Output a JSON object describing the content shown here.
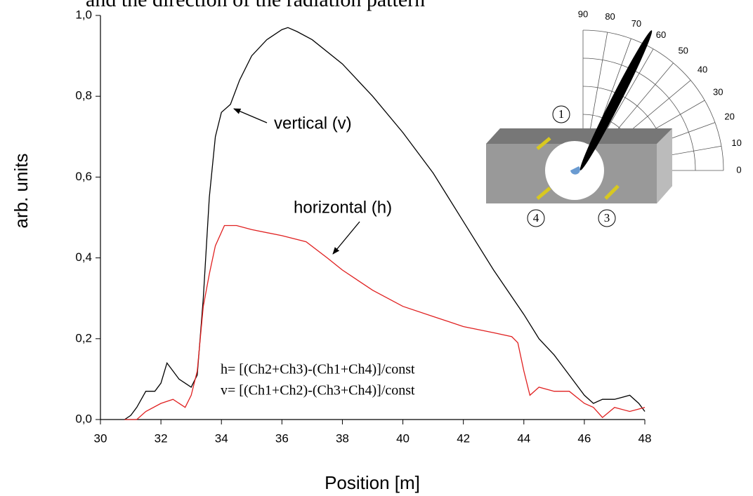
{
  "chart_data": {
    "type": "line",
    "title": "and the direction of the radiation pattern",
    "x_label": "Position [m]",
    "y_label": "arb. units",
    "xlim": [
      30,
      48
    ],
    "xticks": [
      30,
      32,
      34,
      36,
      38,
      40,
      42,
      44,
      46,
      48
    ],
    "ylim": [
      0,
      1
    ],
    "yticks": [
      {
        "value": 0,
        "label": "0,0"
      },
      {
        "value": 0.2,
        "label": "0,2"
      },
      {
        "value": 0.4,
        "label": "0,4"
      },
      {
        "value": 0.6,
        "label": "0,6"
      },
      {
        "value": 0.8,
        "label": "0,8"
      },
      {
        "value": 1,
        "label": "1,0"
      }
    ],
    "grid": false,
    "series": [
      {
        "name": "vertical (v)",
        "color": "#000000",
        "x": [
          30.8,
          31.0,
          31.2,
          31.5,
          31.8,
          32.0,
          32.2,
          32.4,
          32.6,
          32.8,
          33.0,
          33.2,
          33.4,
          33.6,
          33.8,
          34.0,
          34.3,
          34.6,
          35.0,
          35.5,
          36.0,
          36.2,
          36.5,
          37.0,
          38.0,
          39.0,
          40.0,
          41.0,
          42.0,
          43.0,
          44.0,
          44.5,
          45.0,
          45.5,
          45.8,
          46.0,
          46.3,
          46.6,
          47.0,
          47.5,
          47.8,
          48.0
        ],
        "values": [
          0.0,
          0.01,
          0.03,
          0.07,
          0.07,
          0.09,
          0.14,
          0.12,
          0.1,
          0.09,
          0.08,
          0.11,
          0.3,
          0.55,
          0.7,
          0.76,
          0.78,
          0.84,
          0.9,
          0.94,
          0.965,
          0.97,
          0.96,
          0.94,
          0.88,
          0.8,
          0.71,
          0.61,
          0.49,
          0.37,
          0.26,
          0.2,
          0.16,
          0.11,
          0.08,
          0.06,
          0.04,
          0.05,
          0.05,
          0.06,
          0.04,
          0.02
        ]
      },
      {
        "name": "horizontal (h)",
        "color": "#e02020",
        "x": [
          30.8,
          31.2,
          31.5,
          32.0,
          32.4,
          32.8,
          33.0,
          33.2,
          33.4,
          33.6,
          33.8,
          34.1,
          34.5,
          35.0,
          36.0,
          36.8,
          37.5,
          38.0,
          39.0,
          40.0,
          41.0,
          42.0,
          43.0,
          43.6,
          43.8,
          44.0,
          44.2,
          44.5,
          45.0,
          45.5,
          46.0,
          46.3,
          46.6,
          47.0,
          47.5,
          48.0
        ],
        "values": [
          0.0,
          0.0,
          0.02,
          0.04,
          0.05,
          0.03,
          0.06,
          0.12,
          0.28,
          0.36,
          0.43,
          0.48,
          0.48,
          0.47,
          0.455,
          0.44,
          0.4,
          0.37,
          0.32,
          0.28,
          0.255,
          0.23,
          0.215,
          0.205,
          0.19,
          0.12,
          0.06,
          0.08,
          0.07,
          0.07,
          0.04,
          0.03,
          0.005,
          0.03,
          0.02,
          0.03
        ]
      }
    ],
    "annotations": [
      "h= [(Ch2+Ch3)-(Ch1+Ch4)]/const",
      "v= [(Ch1+Ch2)-(Ch3+Ch4)]/const"
    ],
    "inset": {
      "angle_labels": [
        "90",
        "80",
        "70",
        "60",
        "50",
        "40",
        "30",
        "20",
        "10",
        "0"
      ],
      "sensor_labels": [
        "1",
        "4",
        "3"
      ]
    }
  }
}
